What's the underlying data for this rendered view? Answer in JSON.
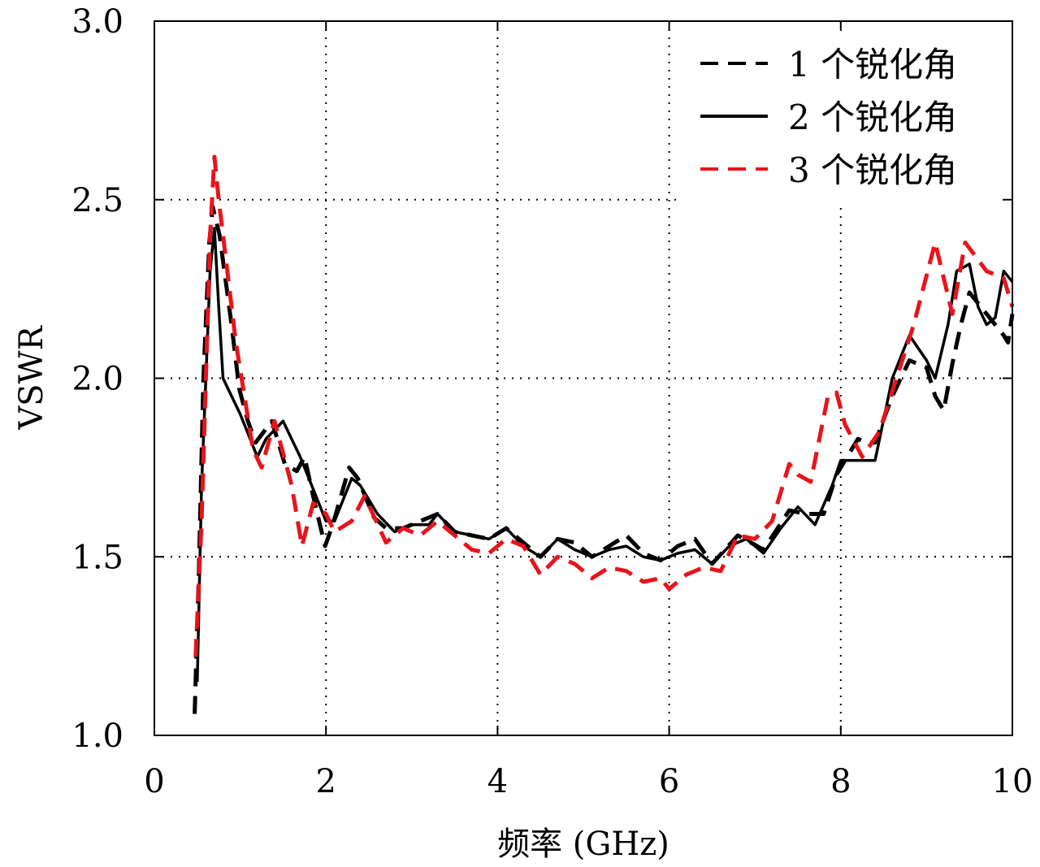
{
  "chart_data": {
    "type": "line",
    "title": "",
    "xlabel": "频率 (GHz)",
    "ylabel": "VSWR",
    "xlim": [
      0,
      10
    ],
    "ylim": [
      1.0,
      3.0
    ],
    "xticks": [
      "0",
      "2",
      "4",
      "6",
      "8",
      "10"
    ],
    "yticks": [
      "1.0",
      "1.5",
      "2.0",
      "2.5",
      "3.0"
    ],
    "grid": true,
    "legend_position": "top-right",
    "series": [
      {
        "name": "1 个锐化角",
        "color": "#000000",
        "style": "dashed",
        "x": [
          0.47,
          0.52,
          0.57,
          0.64,
          0.68,
          0.76,
          0.9,
          0.99,
          1.09,
          1.18,
          1.37,
          1.52,
          1.66,
          1.75,
          1.85,
          1.99,
          2.08,
          2.27,
          2.37,
          2.56,
          2.7,
          2.9,
          3.1,
          3.3,
          3.5,
          3.7,
          3.9,
          4.1,
          4.3,
          4.5,
          4.7,
          4.9,
          5.1,
          5.3,
          5.5,
          5.7,
          5.9,
          6.1,
          6.3,
          6.5,
          6.8,
          7.1,
          7.4,
          7.6,
          7.8,
          7.95,
          8.2,
          8.3,
          8.4,
          8.6,
          8.8,
          9.0,
          9.1,
          9.2,
          9.3,
          9.4,
          9.5,
          9.7,
          9.9,
          9.95,
          10
        ],
        "y": [
          1.06,
          1.47,
          1.99,
          2.38,
          2.48,
          2.4,
          2.15,
          1.97,
          1.88,
          1.82,
          1.88,
          1.76,
          1.74,
          1.78,
          1.67,
          1.53,
          1.59,
          1.75,
          1.72,
          1.61,
          1.58,
          1.58,
          1.6,
          1.62,
          1.57,
          1.56,
          1.55,
          1.58,
          1.54,
          1.5,
          1.55,
          1.54,
          1.5,
          1.53,
          1.56,
          1.51,
          1.49,
          1.53,
          1.55,
          1.48,
          1.56,
          1.52,
          1.63,
          1.62,
          1.62,
          1.73,
          1.83,
          1.82,
          1.82,
          1.95,
          2.05,
          2.03,
          1.95,
          1.91,
          2.04,
          2.15,
          2.24,
          2.18,
          2.12,
          2.1,
          2.18
        ]
      },
      {
        "name": "2 个锐化角",
        "color": "#000000",
        "style": "solid",
        "x": [
          0.5,
          0.55,
          0.6,
          0.65,
          0.7,
          0.75,
          0.8,
          0.9,
          1.0,
          1.2,
          1.3,
          1.5,
          1.7,
          1.8,
          2.0,
          2.1,
          2.3,
          2.4,
          2.6,
          2.8,
          3.0,
          3.2,
          3.3,
          3.5,
          3.7,
          3.9,
          4.1,
          4.3,
          4.5,
          4.7,
          4.9,
          5.1,
          5.3,
          5.5,
          5.7,
          5.9,
          6.1,
          6.3,
          6.5,
          6.7,
          6.9,
          7.1,
          7.3,
          7.5,
          7.7,
          7.9,
          8.0,
          8.2,
          8.4,
          8.6,
          8.8,
          9.0,
          9.1,
          9.25,
          9.35,
          9.5,
          9.6,
          9.7,
          9.8,
          9.9,
          10
        ],
        "y": [
          1.15,
          1.7,
          2.0,
          2.3,
          2.42,
          2.2,
          2.0,
          1.95,
          1.9,
          1.78,
          1.83,
          1.88,
          1.78,
          1.72,
          1.6,
          1.6,
          1.72,
          1.7,
          1.62,
          1.57,
          1.59,
          1.59,
          1.62,
          1.57,
          1.56,
          1.55,
          1.58,
          1.53,
          1.5,
          1.55,
          1.52,
          1.5,
          1.52,
          1.53,
          1.5,
          1.49,
          1.51,
          1.52,
          1.48,
          1.53,
          1.55,
          1.51,
          1.58,
          1.64,
          1.59,
          1.7,
          1.77,
          1.77,
          1.77,
          2.0,
          2.12,
          2.05,
          2.0,
          2.15,
          2.3,
          2.32,
          2.2,
          2.15,
          2.17,
          2.3,
          2.27
        ]
      },
      {
        "name": "3 个锐化角",
        "color": "#e8141b",
        "style": "dashed",
        "x": [
          0.48,
          0.55,
          0.6,
          0.65,
          0.7,
          0.75,
          0.85,
          0.95,
          1.05,
          1.15,
          1.25,
          1.4,
          1.6,
          1.72,
          1.85,
          2.0,
          2.1,
          2.3,
          2.45,
          2.7,
          2.9,
          3.1,
          3.3,
          3.5,
          3.7,
          3.9,
          4.1,
          4.3,
          4.5,
          4.7,
          4.9,
          5.1,
          5.3,
          5.5,
          5.7,
          5.9,
          6.0,
          6.2,
          6.4,
          6.6,
          6.8,
          7.0,
          7.2,
          7.4,
          7.5,
          7.65,
          7.85,
          7.95,
          8.05,
          8.25,
          8.45,
          8.65,
          8.85,
          9.1,
          9.3,
          9.45,
          9.7,
          9.9,
          10
        ],
        "y": [
          1.22,
          1.6,
          2.0,
          2.4,
          2.62,
          2.5,
          2.3,
          2.1,
          1.95,
          1.8,
          1.75,
          1.88,
          1.7,
          1.53,
          1.65,
          1.62,
          1.57,
          1.6,
          1.67,
          1.54,
          1.58,
          1.56,
          1.6,
          1.56,
          1.52,
          1.51,
          1.55,
          1.53,
          1.45,
          1.5,
          1.48,
          1.44,
          1.47,
          1.46,
          1.43,
          1.44,
          1.41,
          1.45,
          1.47,
          1.46,
          1.56,
          1.55,
          1.6,
          1.76,
          1.73,
          1.71,
          1.95,
          1.96,
          1.87,
          1.78,
          1.85,
          2.0,
          2.15,
          2.38,
          2.18,
          2.38,
          2.3,
          2.28,
          2.2
        ]
      }
    ]
  }
}
